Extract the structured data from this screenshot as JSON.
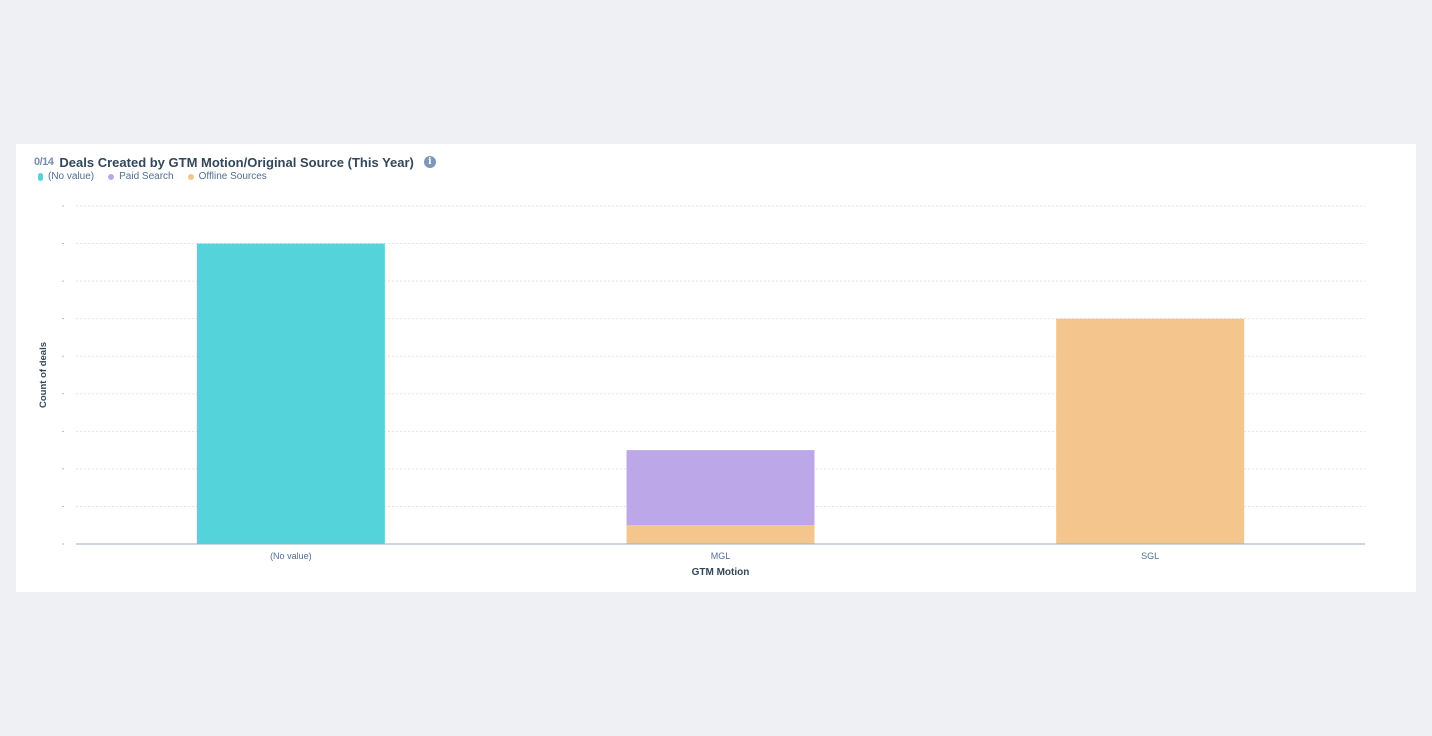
{
  "header": {
    "title_prefix": "0/14",
    "title": "Deals Created by GTM Motion/Original Source (This Year)",
    "info_icon": "info-icon"
  },
  "colors": {
    "no_value": "#54d3db",
    "paid_search": "#bca8e8",
    "offline_sources": "#f5c58e",
    "grid": "#dfe3eb",
    "axis": "#99afc4"
  },
  "chart_data": {
    "type": "bar",
    "stacked": true,
    "categories": [
      "(No value)",
      "MGL",
      "SGL"
    ],
    "series": [
      {
        "name": "(No value)",
        "color": "#54d3db",
        "values": [
          8,
          0,
          0
        ]
      },
      {
        "name": "Offline Sources",
        "color": "#f5c58e",
        "values": [
          0,
          0.5,
          6
        ]
      },
      {
        "name": "Paid Search",
        "color": "#bca8e8",
        "values": [
          0,
          2,
          0
        ]
      }
    ],
    "legend": [
      "(No value)",
      "Paid Search",
      "Offline Sources"
    ],
    "legend_position": "top-left",
    "xlabel": "GTM Motion",
    "ylabel": "Count of deals",
    "ylim": [
      0,
      9
    ],
    "yticks": [
      0,
      1,
      2,
      3,
      4,
      5,
      6,
      7,
      8,
      9
    ],
    "grid": true
  }
}
